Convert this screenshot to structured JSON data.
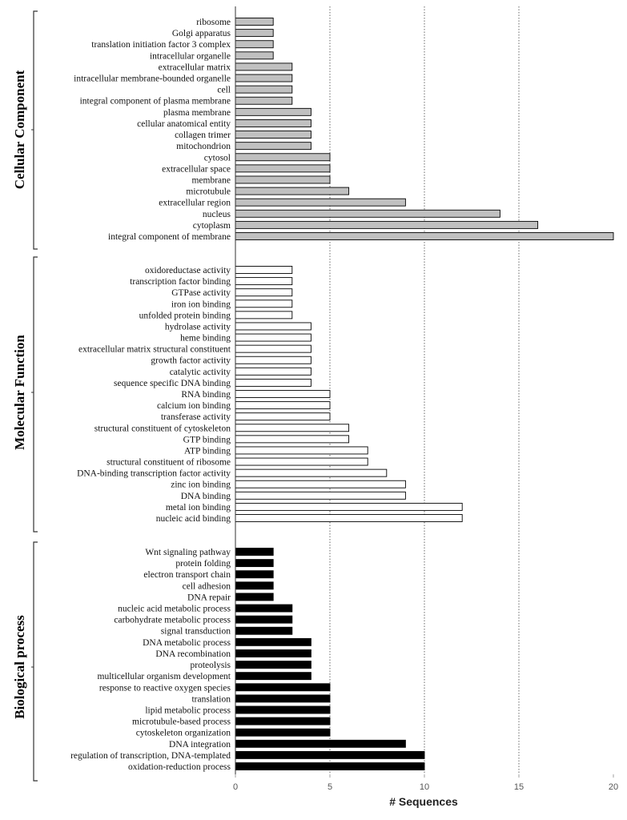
{
  "chart_data": {
    "type": "bar",
    "orientation": "horizontal",
    "xlabel": "# Sequences",
    "xlim": [
      0,
      20
    ],
    "xticks": [
      0,
      5,
      10,
      15,
      20
    ],
    "grid": "vertical dotted lines at 5, 10, 15",
    "groups": [
      {
        "name": "Cellular Component",
        "color": "#c0c0c0",
        "categories": [
          "ribosome",
          "Golgi apparatus",
          "translation initiation factor 3 complex",
          "intracellular organelle",
          "extracellular matrix",
          "intracellular membrane-bounded organelle",
          "cell",
          "integral component of plasma membrane",
          "plasma membrane",
          "cellular anatomical entity",
          "collagen trimer",
          "mitochondrion",
          "cytosol",
          "extracellular space",
          "membrane",
          "microtubule",
          "extracellular region",
          "nucleus",
          "cytoplasm",
          "integral component of membrane"
        ],
        "values": [
          2,
          2,
          2,
          2,
          3,
          3,
          3,
          3,
          4,
          4,
          4,
          4,
          5,
          5,
          5,
          6,
          9,
          14,
          16,
          20
        ]
      },
      {
        "name": "Molecular Function",
        "color": "#ffffff",
        "categories": [
          "oxidoreductase activity",
          "transcription factor binding",
          "GTPase activity",
          "iron ion binding",
          "unfolded protein binding",
          "hydrolase activity",
          "heme binding",
          "extracellular matrix structural constituent",
          "growth factor activity",
          "catalytic activity",
          "sequence specific DNA binding",
          "RNA binding",
          "calcium ion binding",
          "transferase activity",
          "structural constituent of cytoskeleton",
          "GTP binding",
          "ATP binding",
          "structural constituent of ribosome",
          "DNA-binding transcription factor activity",
          "zinc ion binding",
          "DNA binding",
          "metal ion binding",
          "nucleic acid binding"
        ],
        "values": [
          3,
          3,
          3,
          3,
          3,
          4,
          4,
          4,
          4,
          4,
          4,
          5,
          5,
          5,
          6,
          6,
          7,
          7,
          8,
          9,
          9,
          12,
          12
        ]
      },
      {
        "name": "Biological process",
        "color": "#000000",
        "categories": [
          "Wnt signaling pathway",
          "protein folding",
          "electron transport chain",
          "cell adhesion",
          "DNA repair",
          "nucleic acid metabolic process",
          "carbohydrate metabolic process",
          "signal transduction",
          "DNA metabolic process",
          "DNA recombination",
          "proteolysis",
          "multicellular organism development",
          "response to reactive oxygen species",
          "translation",
          "lipid metabolic process",
          "microtubule-based process",
          "cytoskeleton organization",
          "DNA integration",
          "regulation of transcription, DNA-templated",
          "oxidation-reduction process"
        ],
        "values": [
          2,
          2,
          2,
          2,
          2,
          3,
          3,
          3,
          4,
          4,
          4,
          4,
          5,
          5,
          5,
          5,
          5,
          9,
          10,
          10
        ]
      }
    ]
  }
}
